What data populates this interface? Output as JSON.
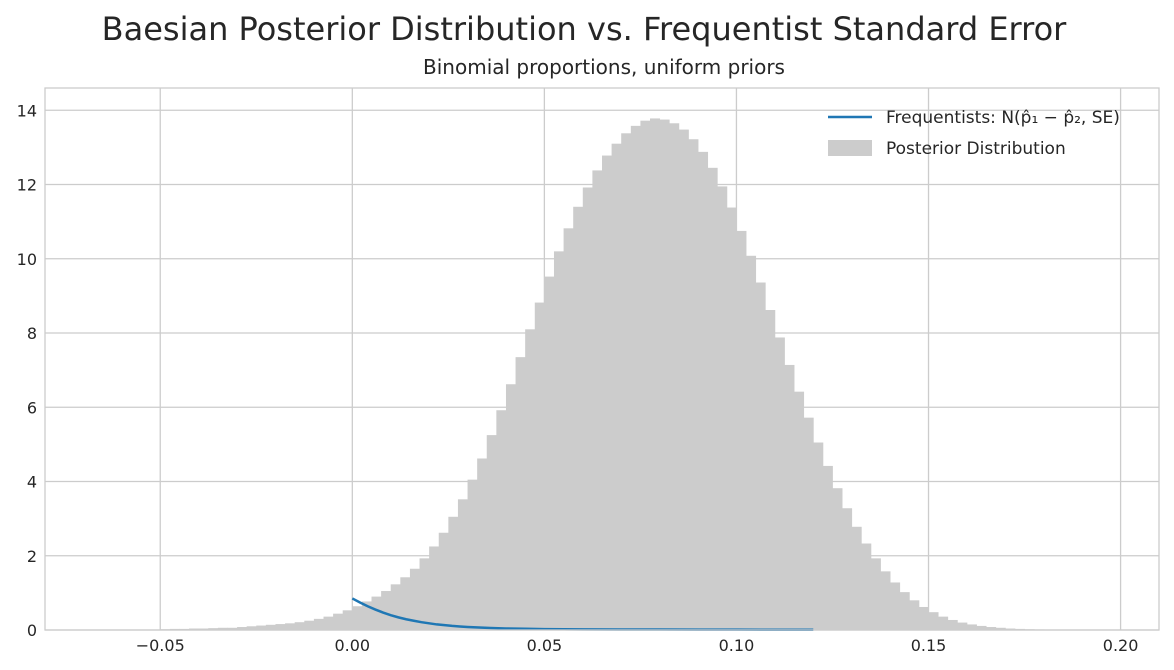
{
  "chart_data": {
    "type": "bar",
    "title": "Baesian Posterior Distribution vs. Frequentist Standard Error",
    "subtitle": "Binomial proportions, uniform priors",
    "xlabel": "",
    "ylabel": "",
    "xlim": [
      -0.08,
      0.21
    ],
    "ylim": [
      0,
      14.6
    ],
    "xticks": [
      -0.05,
      0.0,
      0.05,
      0.1,
      0.15,
      0.2
    ],
    "xtick_labels": [
      "−0.05",
      "0.00",
      "0.05",
      "0.10",
      "0.15",
      "0.20"
    ],
    "yticks": [
      0,
      2,
      4,
      6,
      8,
      10,
      12,
      14
    ],
    "ytick_labels": [
      "0",
      "2",
      "4",
      "6",
      "8",
      "10",
      "12",
      "14"
    ],
    "grid": true,
    "legend_position": "top-right",
    "histogram": {
      "name": "Posterior Distribution",
      "color": "#cccccc",
      "bin_start": -0.05,
      "bin_width": 0.0025,
      "values": [
        0.02,
        0.03,
        0.03,
        0.04,
        0.04,
        0.05,
        0.06,
        0.06,
        0.08,
        0.1,
        0.12,
        0.14,
        0.16,
        0.18,
        0.21,
        0.25,
        0.3,
        0.36,
        0.44,
        0.53,
        0.64,
        0.77,
        0.9,
        1.05,
        1.23,
        1.42,
        1.65,
        1.93,
        2.25,
        2.62,
        3.05,
        3.52,
        4.05,
        4.62,
        5.25,
        5.92,
        6.62,
        7.35,
        8.1,
        8.82,
        9.52,
        10.2,
        10.82,
        11.4,
        11.92,
        12.38,
        12.78,
        13.1,
        13.38,
        13.58,
        13.72,
        13.78,
        13.75,
        13.65,
        13.48,
        13.22,
        12.88,
        12.45,
        11.95,
        11.38,
        10.75,
        10.08,
        9.36,
        8.62,
        7.88,
        7.14,
        6.42,
        5.72,
        5.05,
        4.42,
        3.82,
        3.28,
        2.78,
        2.33,
        1.93,
        1.58,
        1.28,
        1.02,
        0.8,
        0.62,
        0.48,
        0.36,
        0.27,
        0.2,
        0.15,
        0.11,
        0.08,
        0.06,
        0.04,
        0.03,
        0.02,
        0.015,
        0.01,
        0.008,
        0.005,
        0.004
      ]
    },
    "series": [
      {
        "name": "Frequentists: N(p̂₁ − p̂₂, SE)",
        "color": "#1f77b4",
        "x": [
          0.0,
          0.002,
          0.004,
          0.006,
          0.008,
          0.01,
          0.012,
          0.014,
          0.016,
          0.018,
          0.02,
          0.022,
          0.024,
          0.026,
          0.028,
          0.03,
          0.033,
          0.036,
          0.04,
          0.045,
          0.05,
          0.06,
          0.07,
          0.08,
          0.09,
          0.1,
          0.11,
          0.12
        ],
        "y": [
          0.85,
          0.74,
          0.64,
          0.55,
          0.47,
          0.4,
          0.34,
          0.29,
          0.25,
          0.21,
          0.18,
          0.15,
          0.13,
          0.11,
          0.095,
          0.082,
          0.066,
          0.054,
          0.042,
          0.032,
          0.025,
          0.018,
          0.014,
          0.012,
          0.01,
          0.009,
          0.008,
          0.007
        ]
      }
    ]
  }
}
